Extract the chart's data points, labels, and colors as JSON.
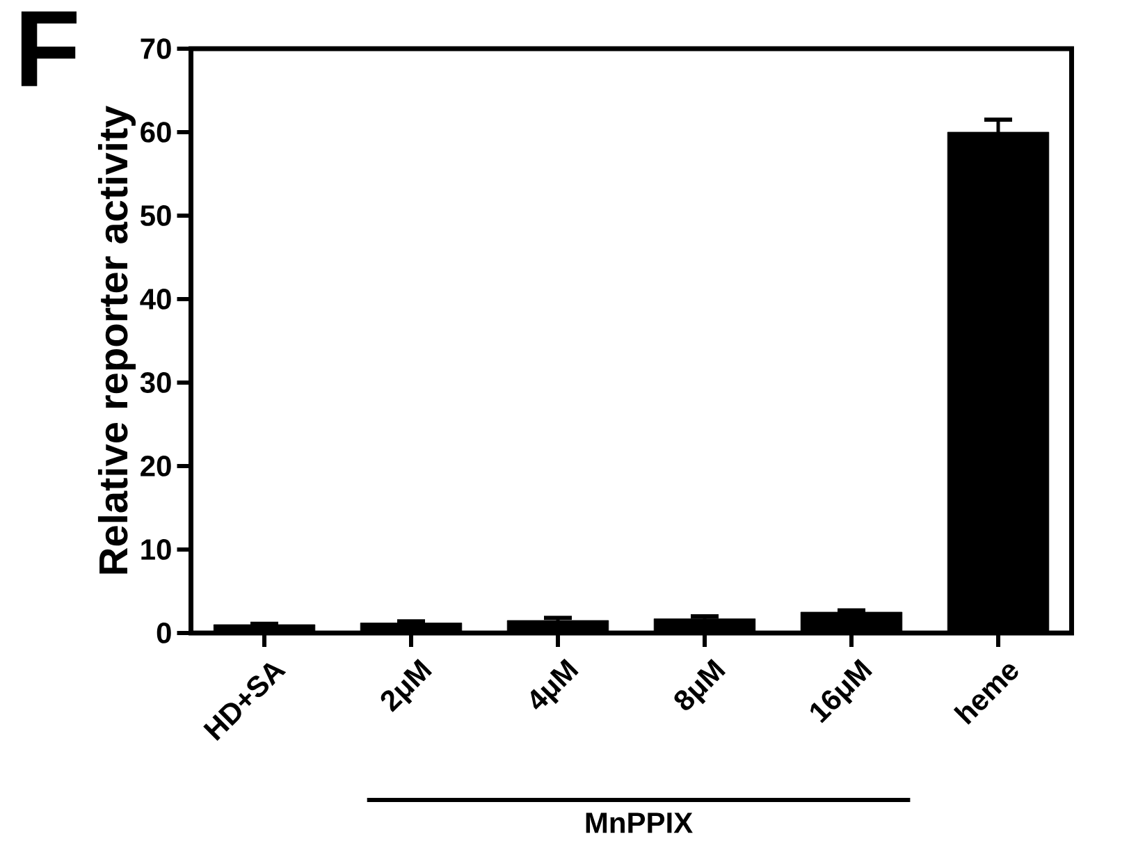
{
  "chart_data": {
    "type": "bar",
    "ylabel": "Relative reporter activity",
    "categories": [
      "HD+SA",
      "2μM",
      "4μM",
      "8μM",
      "16μM",
      "heme"
    ],
    "values": [
      1.0,
      1.2,
      1.5,
      1.7,
      2.5,
      60
    ],
    "errors": [
      0.1,
      0.2,
      0.3,
      0.3,
      0.2,
      1.5
    ],
    "color": "#000000",
    "ylim": [
      0,
      70
    ],
    "yticks": [
      0,
      10,
      20,
      30,
      40,
      50,
      60,
      70
    ],
    "annotations": [
      "F",
      "MnPPIX"
    ]
  }
}
